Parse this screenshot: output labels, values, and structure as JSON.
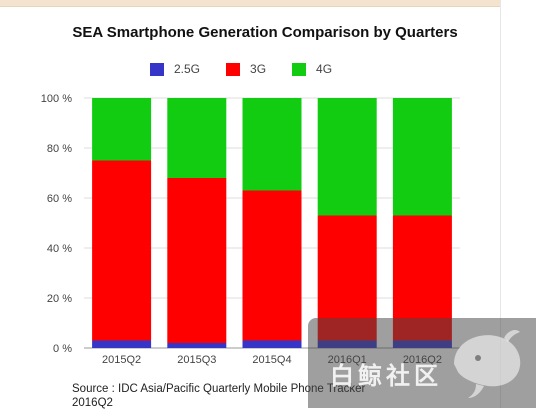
{
  "chart_data": {
    "type": "bar",
    "stacked": true,
    "title": "SEA Smartphone Generation Comparison by Quarters",
    "categories": [
      "2015Q2",
      "2015Q3",
      "2015Q4",
      "2016Q1",
      "2016Q2"
    ],
    "series": [
      {
        "name": "2.5G",
        "color": "#3535c8",
        "values": [
          3,
          2,
          3,
          3,
          3
        ]
      },
      {
        "name": "3G",
        "color": "#ff0000",
        "values": [
          72,
          66,
          60,
          50,
          50
        ]
      },
      {
        "name": "4G",
        "color": "#11cc11",
        "values": [
          25,
          32,
          37,
          47,
          47
        ]
      }
    ],
    "yticks": [
      "0 %",
      "20 %",
      "40 %",
      "60 %",
      "80 %",
      "100 %"
    ],
    "ylim": [
      0,
      100
    ],
    "grid": true,
    "legend_position": "top"
  },
  "source_text": "Source : IDC Asia/Pacific Quarterly Mobile Phone Tracker 2016Q2",
  "watermark": {
    "text": "白鲸社区",
    "icon": "whale-icon"
  }
}
